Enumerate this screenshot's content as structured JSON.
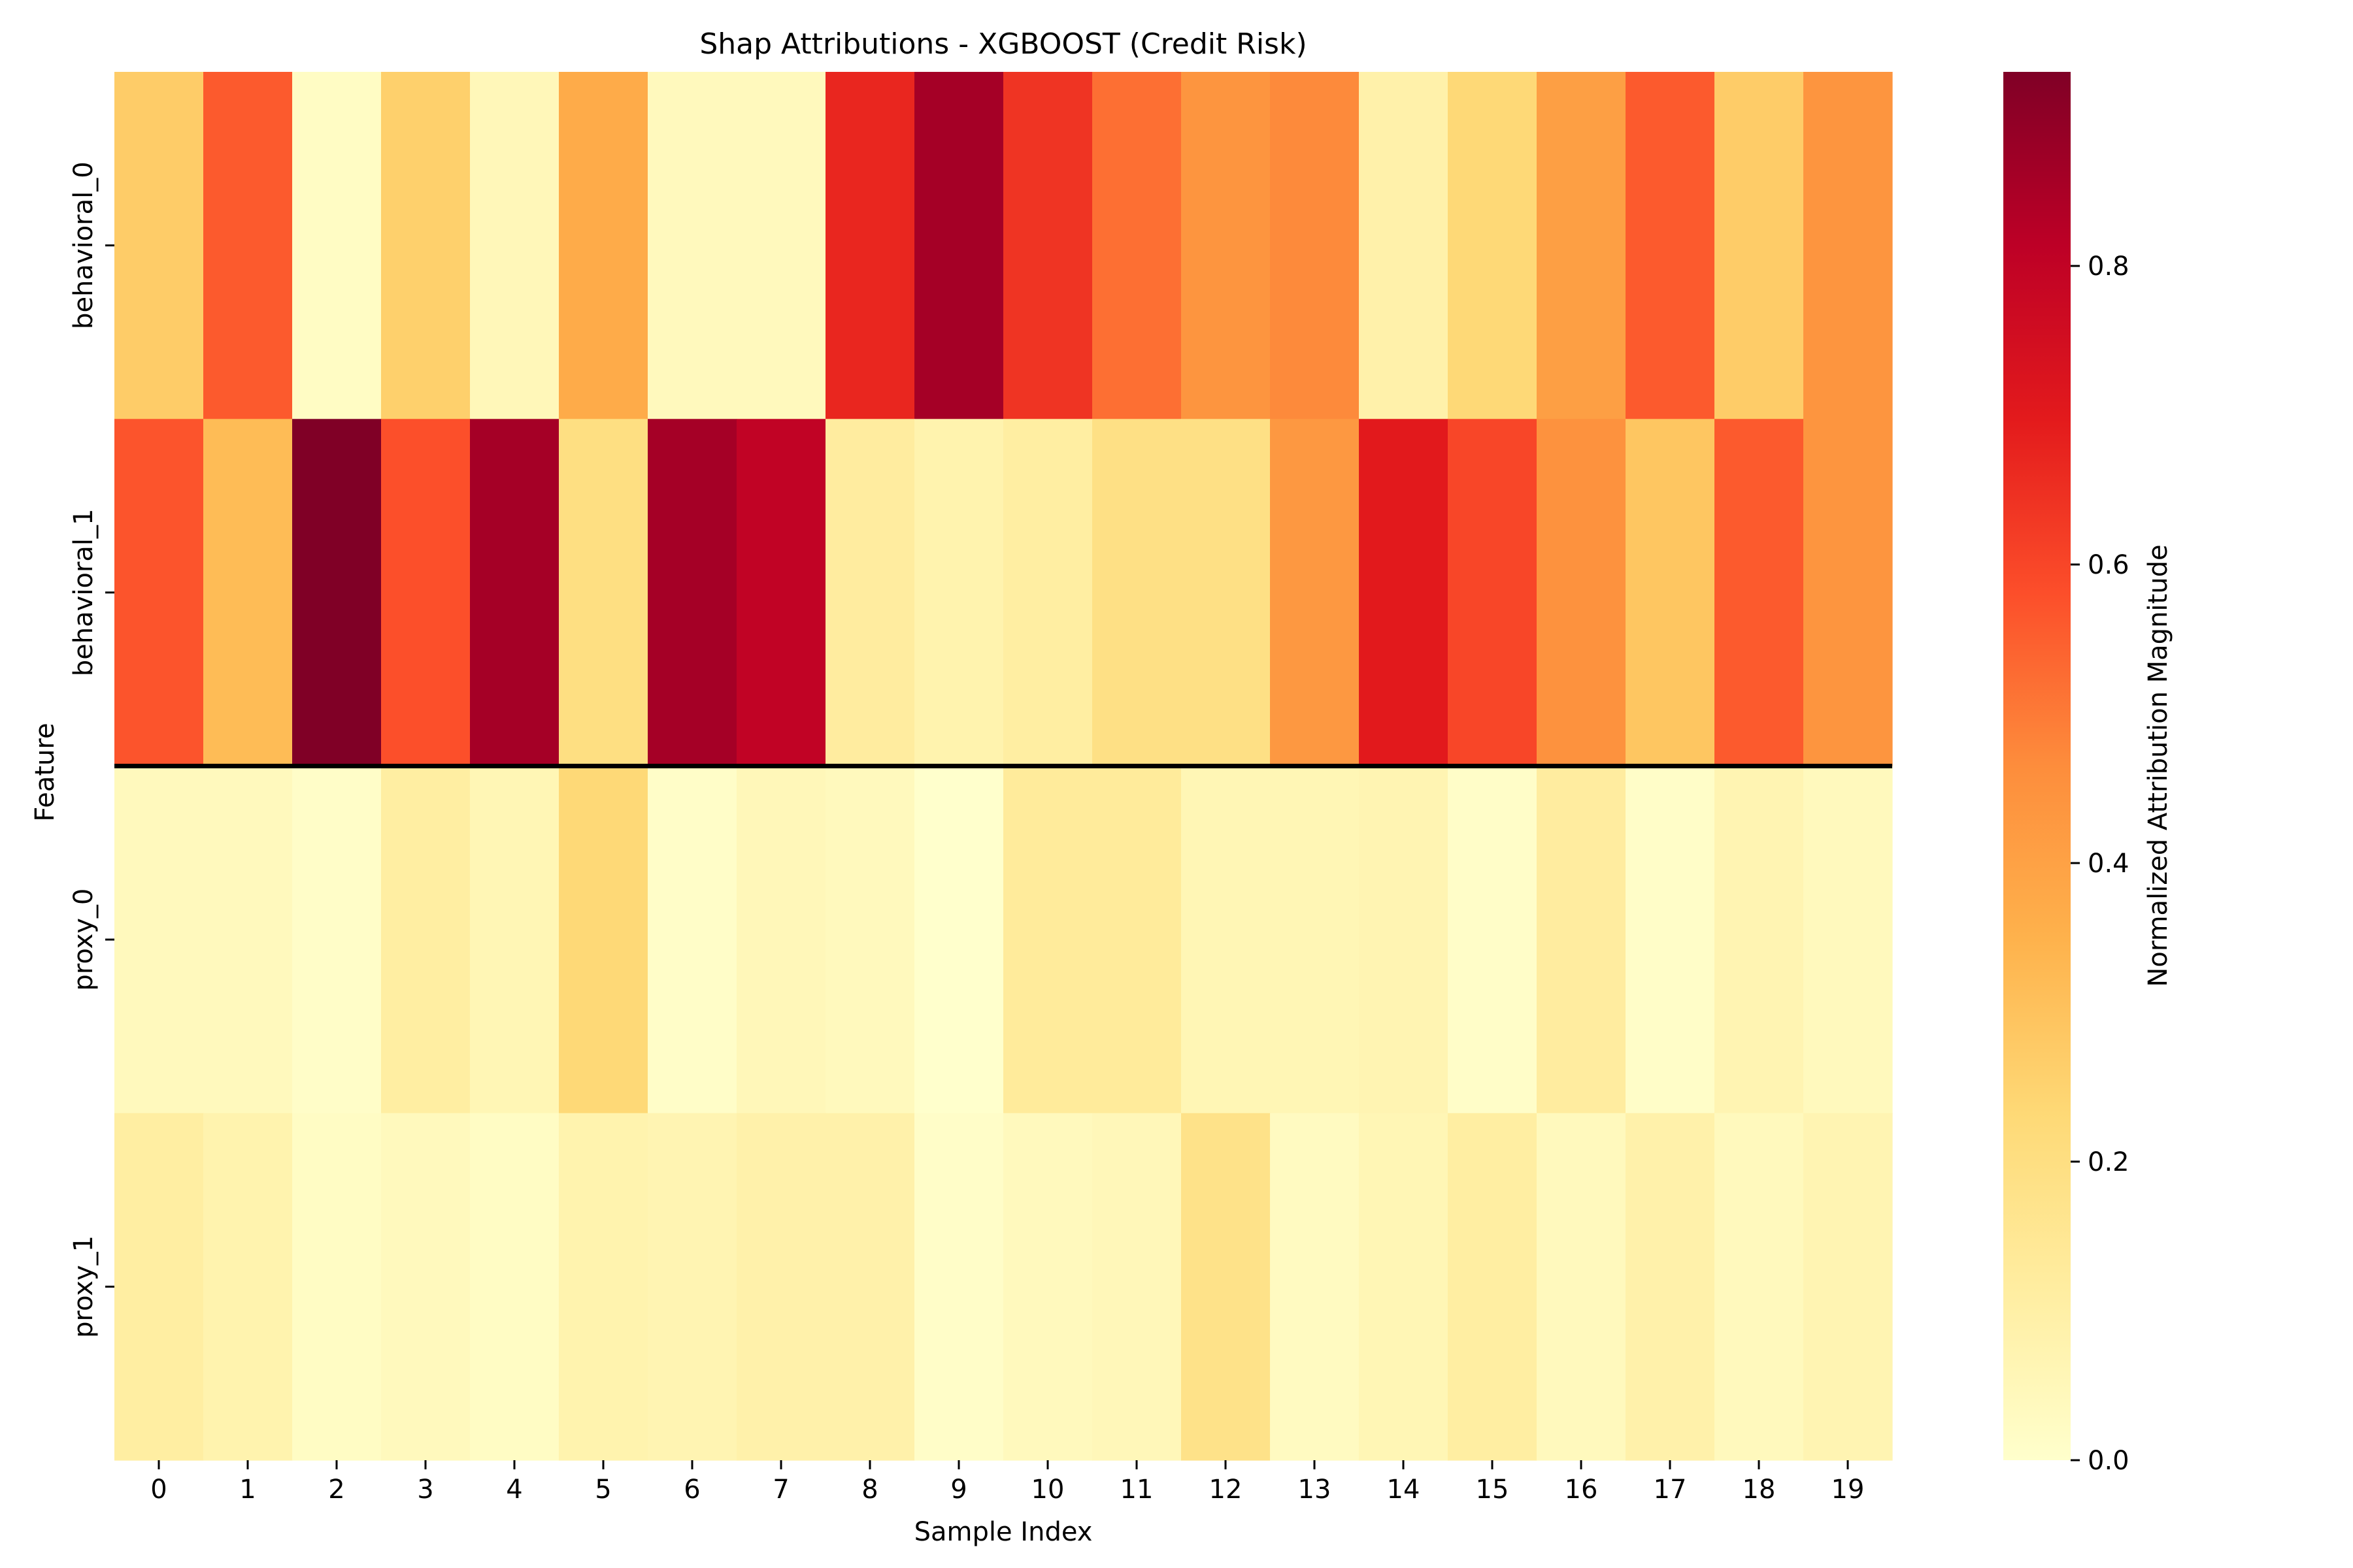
{
  "chart_data": {
    "type": "heatmap",
    "title": "Shap Attributions - XGBOOST (Credit Risk)",
    "xlabel": "Sample Index",
    "ylabel": "Feature",
    "colorbar_label": "Normalized Attribution Magnitude",
    "colormap": "YlOrRd",
    "colormap_stops": [
      "#ffffcc",
      "#ffeda0",
      "#fed976",
      "#feb24c",
      "#fd8d3c",
      "#fc4e2a",
      "#e31a1c",
      "#bd0026",
      "#800026"
    ],
    "vmin": 0.0,
    "vmax": 0.93,
    "colorbar_ticks": [
      0.0,
      0.2,
      0.4,
      0.6,
      0.8
    ],
    "colorbar_tick_labels": [
      "0.0",
      "0.2",
      "0.4",
      "0.6",
      "0.8"
    ],
    "x": [
      "0",
      "1",
      "2",
      "3",
      "4",
      "5",
      "6",
      "7",
      "8",
      "9",
      "10",
      "11",
      "12",
      "13",
      "14",
      "15",
      "16",
      "17",
      "18",
      "19"
    ],
    "y": [
      "behavioral_0",
      "behavioral_1",
      "proxy_0",
      "proxy_1"
    ],
    "values": [
      [
        0.27,
        0.56,
        0.02,
        0.26,
        0.05,
        0.37,
        0.04,
        0.04,
        0.67,
        0.86,
        0.64,
        0.52,
        0.44,
        0.47,
        0.09,
        0.23,
        0.41,
        0.56,
        0.27,
        0.44
      ],
      [
        0.57,
        0.32,
        0.93,
        0.58,
        0.86,
        0.2,
        0.86,
        0.8,
        0.12,
        0.08,
        0.11,
        0.19,
        0.19,
        0.43,
        0.7,
        0.6,
        0.45,
        0.29,
        0.56,
        0.44
      ],
      [
        0.04,
        0.04,
        0.01,
        0.11,
        0.06,
        0.23,
        0.01,
        0.05,
        0.04,
        0.0,
        0.13,
        0.13,
        0.06,
        0.06,
        0.07,
        0.01,
        0.12,
        0.01,
        0.07,
        0.04
      ],
      [
        0.11,
        0.08,
        0.02,
        0.04,
        0.02,
        0.08,
        0.07,
        0.09,
        0.09,
        0.01,
        0.04,
        0.05,
        0.18,
        0.03,
        0.06,
        0.11,
        0.04,
        0.09,
        0.04,
        0.07
      ]
    ],
    "separator_after_row": 1
  }
}
